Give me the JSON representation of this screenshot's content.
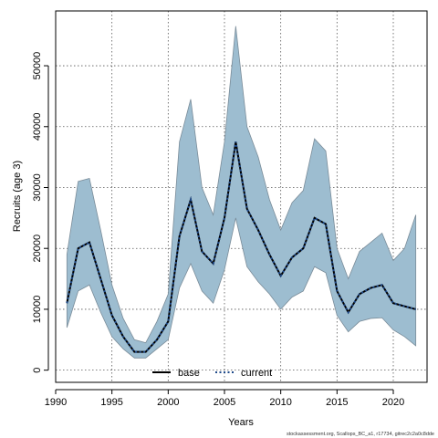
{
  "chart_data": {
    "type": "area",
    "xlabel": "Years",
    "ylabel": "Recruits (age 3)",
    "xlim": [
      1990,
      2023
    ],
    "ylim": [
      -2000,
      59000
    ],
    "x_ticks": [
      1990,
      1995,
      2000,
      2005,
      2010,
      2015,
      2020
    ],
    "y_ticks": [
      0,
      10000,
      20000,
      30000,
      40000,
      50000
    ],
    "grid": true,
    "legend_position": "bottom-center",
    "colors": {
      "band": "#9dbdd0",
      "band_edge": "#7a8c99",
      "base_line": "#000000",
      "current_line": "#1f4a8a",
      "grid": "#555555"
    },
    "x": [
      1991,
      1992,
      1993,
      1994,
      1995,
      1996,
      1997,
      1998,
      1999,
      2000,
      2001,
      2002,
      2003,
      2004,
      2005,
      2006,
      2007,
      2008,
      2009,
      2010,
      2011,
      2012,
      2013,
      2014,
      2015,
      2016,
      2017,
      2018,
      2019,
      2020,
      2021,
      2022
    ],
    "series": [
      {
        "name": "base",
        "values": [
          11000,
          20000,
          21000,
          15000,
          9000,
          5500,
          3000,
          3000,
          5000,
          8000,
          22000,
          28000,
          19500,
          17500,
          25000,
          37500,
          26500,
          23000,
          19000,
          15500,
          18500,
          20000,
          25000,
          24000,
          13000,
          9500,
          12500,
          13500,
          14000,
          11000,
          10500,
          10000
        ]
      },
      {
        "name": "current",
        "values": [
          11000,
          20000,
          21000,
          15000,
          9000,
          5500,
          3000,
          3000,
          5000,
          8000,
          22000,
          28000,
          19500,
          17500,
          25000,
          37500,
          26500,
          23000,
          19000,
          15500,
          18500,
          20000,
          25000,
          24000,
          13000,
          9500,
          12500,
          13500,
          14000,
          11000,
          10500,
          10000
        ]
      }
    ],
    "band": {
      "upper": [
        19000,
        31000,
        31500,
        23000,
        14000,
        8500,
        5000,
        4500,
        8000,
        12500,
        37500,
        44500,
        30000,
        25500,
        37500,
        56500,
        40000,
        35000,
        28000,
        23000,
        27500,
        29500,
        38000,
        36000,
        20000,
        15000,
        19500,
        21000,
        22500,
        18000,
        20000,
        25500
      ],
      "lower": [
        7000,
        13000,
        14000,
        9500,
        5500,
        3500,
        2000,
        2000,
        3500,
        5000,
        13500,
        17500,
        13000,
        11000,
        16500,
        25000,
        17000,
        14500,
        12500,
        10000,
        12000,
        13000,
        17000,
        16000,
        9000,
        6300,
        8000,
        8500,
        8600,
        6600,
        5500,
        4000
      ]
    },
    "legend": [
      {
        "label": "base",
        "style": "solid"
      },
      {
        "label": "current",
        "style": "dotted"
      }
    ],
    "footnote": "stockassessment.org, Scallops_BC_a1, r17734, gitrec2c2a0c8dde"
  }
}
